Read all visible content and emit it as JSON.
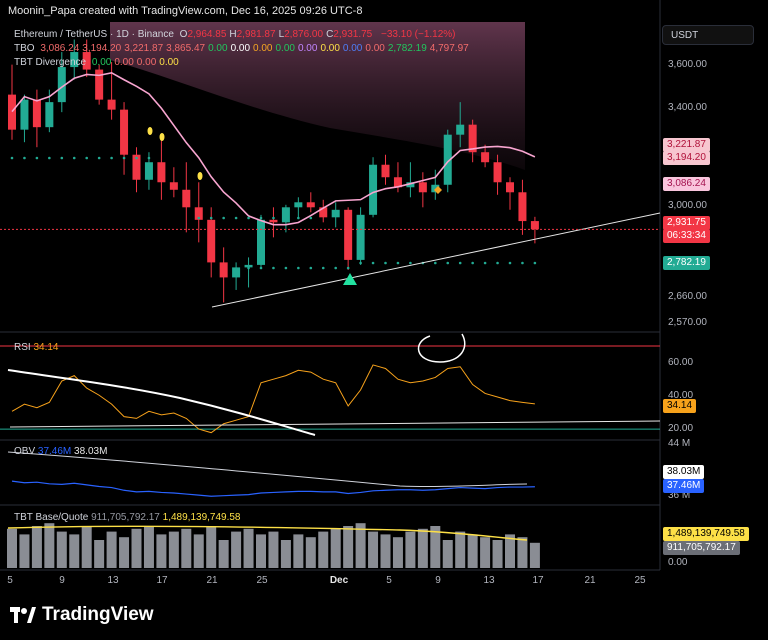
{
  "header": {
    "credit": "Moonin_Papa created with TradingView.com, Dec 16, 2025 09:26 UTC-8",
    "symbol": "Ethereum / TetherUS · 1D · Binance",
    "ohlc": [
      {
        "k": "O",
        "v": "2,964.85"
      },
      {
        "k": "H",
        "v": "2,981.87"
      },
      {
        "k": "L",
        "v": "2,876.00"
      },
      {
        "k": "C",
        "v": "2,931.75"
      }
    ],
    "change": "−33.10 (−1.12%)",
    "tbo_label": "TBO",
    "tbo_values": [
      {
        "v": "3,086.24",
        "c": "#f26b6b"
      },
      {
        "v": "3,194.20",
        "c": "#f26b6b"
      },
      {
        "v": "3,221.87",
        "c": "#f26b6b"
      },
      {
        "v": "3,865.47",
        "c": "#f26b6b"
      },
      {
        "v": "0.00",
        "c": "#22c55e"
      },
      {
        "v": "0.00",
        "c": "#ffffff"
      },
      {
        "v": "0.00",
        "c": "#f5a623"
      },
      {
        "v": "0.00",
        "c": "#22c55e"
      },
      {
        "v": "0.00",
        "c": "#c084fc"
      },
      {
        "v": "0.00",
        "c": "#fde047"
      },
      {
        "v": "0.00",
        "c": "#4f7df7"
      },
      {
        "v": "0.00",
        "c": "#f26b6b"
      },
      {
        "v": "2,782.19",
        "c": "#22c55e"
      },
      {
        "v": "4,797.97",
        "c": "#f26b6b"
      }
    ],
    "div_label": "TBT Divergence",
    "div_values": [
      {
        "v": "0.00",
        "c": "#22c55e"
      },
      {
        "v": "0.00",
        "c": "#f26b6b"
      },
      {
        "v": "0.00",
        "c": "#f26b6b"
      },
      {
        "v": "0.00",
        "c": "#fde047"
      }
    ]
  },
  "currency_button": "USDT",
  "price_axis": [
    "3,600.00",
    "3,400.00",
    "3,000.00",
    "2,660.00",
    "2,570.00"
  ],
  "price_tags": [
    {
      "v": "3,221.87",
      "bg": "#f7c6d0",
      "fg": "#b0123a"
    },
    {
      "v": "3,194.20",
      "bg": "#f7c6d0",
      "fg": "#b0123a"
    },
    {
      "v": "3,086.24",
      "bg": "#f9c5dd",
      "fg": "#a3134f"
    },
    {
      "v": "2,931.75",
      "bg": "#f23645",
      "fg": "#ffffff"
    },
    {
      "v": "06:33:34",
      "bg": "#f23645",
      "fg": "#ffffff"
    },
    {
      "v": "2,782.19",
      "bg": "#22ab94",
      "fg": "#ffffff"
    }
  ],
  "rsi": {
    "label": "RSI",
    "value": "34.14",
    "axis": [
      "60.00",
      "40.00",
      "20.00"
    ],
    "tag": "34.14"
  },
  "obv": {
    "label": "OBV",
    "v1": "37.46M",
    "v2": "38.03M",
    "axis": [
      "44 M",
      "36 M"
    ],
    "tag1": "38.03M",
    "tag2": "37.46M"
  },
  "base": {
    "label": "TBT Base/Quote",
    "v1": "911,705,792.17",
    "v2": "1,489,139,749.58",
    "axis": [
      "0.00"
    ],
    "tag1": "1,489,139,749.58",
    "tag2": "911,705,792.17"
  },
  "x_axis": [
    "5",
    "9",
    "13",
    "17",
    "21",
    "25",
    "Dec",
    "5",
    "9",
    "13",
    "17",
    "21",
    "25"
  ],
  "brand": "TradingView",
  "colors": {
    "up": "#22ab94",
    "down": "#f23645",
    "ma": "#f8a5d0",
    "rsi": "#f7a21b",
    "obv": "#2962ff",
    "obv_ma": "#d1d4dc",
    "base": "#fde047"
  },
  "chart_data": [
    {
      "type": "candlestick",
      "title": "Ethereum / TetherUS · 1D · Binance",
      "x": [
        "Nov 4",
        "Nov 5",
        "Nov 6",
        "Nov 7",
        "Nov 8",
        "Nov 9",
        "Nov 10",
        "Nov 11",
        "Nov 12",
        "Nov 13",
        "Nov 14",
        "Nov 15",
        "Nov 16",
        "Nov 17",
        "Nov 18",
        "Nov 19",
        "Nov 20",
        "Nov 21",
        "Nov 22",
        "Nov 23",
        "Nov 24",
        "Nov 25",
        "Nov 26",
        "Nov 27",
        "Nov 28",
        "Nov 29",
        "Nov 30",
        "Dec 1",
        "Dec 2",
        "Dec 3",
        "Dec 4",
        "Dec 5",
        "Dec 6",
        "Dec 7",
        "Dec 8",
        "Dec 9",
        "Dec 10",
        "Dec 11",
        "Dec 12",
        "Dec 13",
        "Dec 14",
        "Dec 15",
        "Dec 16"
      ],
      "ohlc": [
        [
          3470,
          3590,
          3290,
          3330
        ],
        [
          3330,
          3470,
          3280,
          3450
        ],
        [
          3450,
          3490,
          3260,
          3340
        ],
        [
          3340,
          3490,
          3320,
          3440
        ],
        [
          3440,
          3640,
          3400,
          3580
        ],
        [
          3580,
          3690,
          3530,
          3640
        ],
        [
          3640,
          3690,
          3540,
          3570
        ],
        [
          3570,
          3590,
          3430,
          3450
        ],
        [
          3450,
          3600,
          3370,
          3410
        ],
        [
          3410,
          3440,
          3150,
          3230
        ],
        [
          3230,
          3260,
          3080,
          3130
        ],
        [
          3130,
          3240,
          3090,
          3200
        ],
        [
          3200,
          3290,
          3050,
          3120
        ],
        [
          3120,
          3180,
          3060,
          3090
        ],
        [
          3090,
          3200,
          2920,
          3020
        ],
        [
          3020,
          3120,
          2880,
          2970
        ],
        [
          2970,
          3020,
          2740,
          2800
        ],
        [
          2800,
          2860,
          2640,
          2740
        ],
        [
          2740,
          2800,
          2690,
          2780
        ],
        [
          2780,
          2820,
          2700,
          2790
        ],
        [
          2790,
          2990,
          2780,
          2970
        ],
        [
          2970,
          3020,
          2900,
          2960
        ],
        [
          2960,
          3030,
          2920,
          3020
        ],
        [
          3020,
          3060,
          2980,
          3040
        ],
        [
          3040,
          3080,
          3000,
          3020
        ],
        [
          3020,
          3050,
          2960,
          2980
        ],
        [
          2980,
          3040,
          2940,
          3010
        ],
        [
          3010,
          3020,
          2770,
          2810
        ],
        [
          2810,
          3020,
          2790,
          2990
        ],
        [
          2990,
          3220,
          2980,
          3190
        ],
        [
          3190,
          3230,
          3110,
          3140
        ],
        [
          3140,
          3200,
          3080,
          3100
        ],
        [
          3100,
          3200,
          3060,
          3120
        ],
        [
          3120,
          3160,
          3020,
          3080
        ],
        [
          3080,
          3170,
          3050,
          3110
        ],
        [
          3110,
          3330,
          3080,
          3310
        ],
        [
          3310,
          3440,
          3260,
          3350
        ],
        [
          3350,
          3370,
          3200,
          3240
        ],
        [
          3240,
          3270,
          3180,
          3200
        ],
        [
          3200,
          3230,
          3070,
          3120
        ],
        [
          3120,
          3140,
          3010,
          3080
        ],
        [
          3080,
          3130,
          2910,
          2965
        ],
        [
          2965,
          2982,
          2876,
          2932
        ]
      ],
      "ylim": [
        2530,
        3760
      ]
    },
    {
      "type": "line",
      "title": "RSI",
      "series": [
        {
          "name": "RSI",
          "values": [
            30,
            34,
            32,
            35,
            47,
            50,
            43,
            39,
            34,
            27,
            26,
            30,
            28,
            29,
            26,
            20,
            18,
            23,
            25,
            27,
            46,
            48,
            50,
            53,
            52,
            48,
            46,
            33,
            42,
            56,
            54,
            48,
            46,
            47,
            49,
            54,
            55,
            45,
            40,
            38,
            36,
            35,
            34.14
          ]
        }
      ],
      "ylim": [
        15,
        70
      ]
    },
    {
      "type": "line",
      "title": "OBV",
      "series": [
        {
          "name": "OBV",
          "values": [
            38.5,
            38.2,
            38.3,
            38.0,
            37.9,
            38.1,
            37.8,
            37.5,
            37.3,
            36.8,
            36.5,
            36.6,
            36.4,
            36.3,
            36.1,
            35.9,
            35.7,
            35.8,
            35.9,
            36.0,
            36.3,
            36.4,
            36.5,
            36.6,
            36.6,
            36.5,
            36.5,
            36.2,
            36.4,
            36.7,
            36.8,
            36.9,
            36.9,
            36.8,
            36.9,
            37.1,
            37.3,
            37.2,
            37.1,
            37.3,
            37.4,
            37.4,
            37.46
          ]
        }
      ],
      "ylim": [
        35,
        45
      ]
    },
    {
      "type": "bar",
      "title": "TBT Base/Quote",
      "series": [
        {
          "name": "TBT Base/Quote",
          "values": [
            1.4,
            1.2,
            1.5,
            1.6,
            1.3,
            1.2,
            1.5,
            1.0,
            1.3,
            1.1,
            1.4,
            1.5,
            1.2,
            1.3,
            1.4,
            1.2,
            1.5,
            1.0,
            1.3,
            1.4,
            1.2,
            1.3,
            1.0,
            1.2,
            1.1,
            1.3,
            1.4,
            1.5,
            1.6,
            1.3,
            1.2,
            1.1,
            1.3,
            1.4,
            1.5,
            1.0,
            1.3,
            1.2,
            1.1,
            1.0,
            1.2,
            1.1,
            0.9
          ]
        }
      ]
    }
  ]
}
